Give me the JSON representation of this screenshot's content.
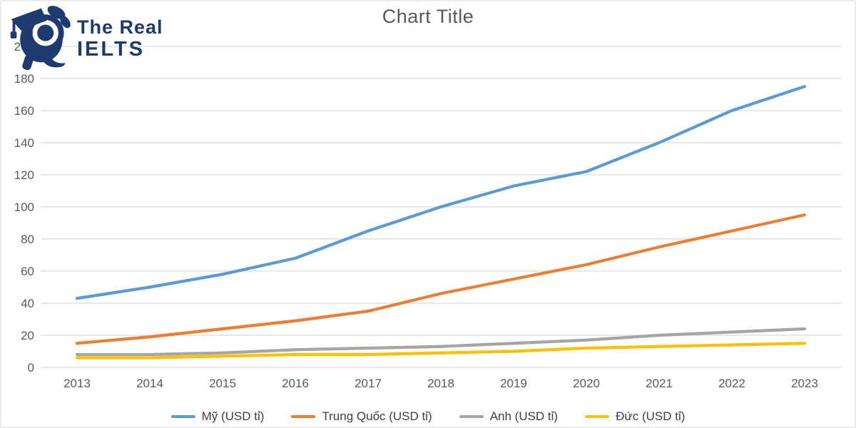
{
  "logo": {
    "line1": "The Real",
    "line2": "IELTS",
    "color": "#1e3a70",
    "icon": "snail-graduate-icon"
  },
  "chart_data": {
    "type": "line",
    "title": "Chart Title",
    "categories": [
      "2013",
      "2014",
      "2015",
      "2016",
      "2017",
      "2018",
      "2019",
      "2020",
      "2021",
      "2022",
      "2023"
    ],
    "series": [
      {
        "name": "Mỹ (USD tỉ)",
        "color": "#5B9BD5",
        "values": [
          43,
          50,
          58,
          68,
          85,
          100,
          113,
          122,
          140,
          160,
          175
        ]
      },
      {
        "name": "Trung Quốc (USD tỉ)",
        "color": "#ED7D31",
        "values": [
          15,
          19,
          24,
          29,
          35,
          46,
          55,
          64,
          75,
          85,
          95
        ]
      },
      {
        "name": "Anh (USD tỉ)",
        "color": "#A5A5A5",
        "values": [
          8,
          8,
          9,
          11,
          12,
          13,
          15,
          17,
          20,
          22,
          24
        ]
      },
      {
        "name": "Đức (USD tỉ)",
        "color": "#FFC000",
        "values": [
          6,
          6,
          7,
          8,
          8,
          9,
          10,
          12,
          13,
          14,
          15
        ]
      }
    ],
    "xlabel": "",
    "ylabel": "",
    "ylim": [
      0,
      200
    ],
    "ytick_step": 20,
    "grid": true,
    "legend_position": "bottom"
  },
  "colors": {
    "grid": "#d9d9d9",
    "axis_text": "#595959",
    "title_text": "#595959",
    "legend_text": "#404040"
  }
}
